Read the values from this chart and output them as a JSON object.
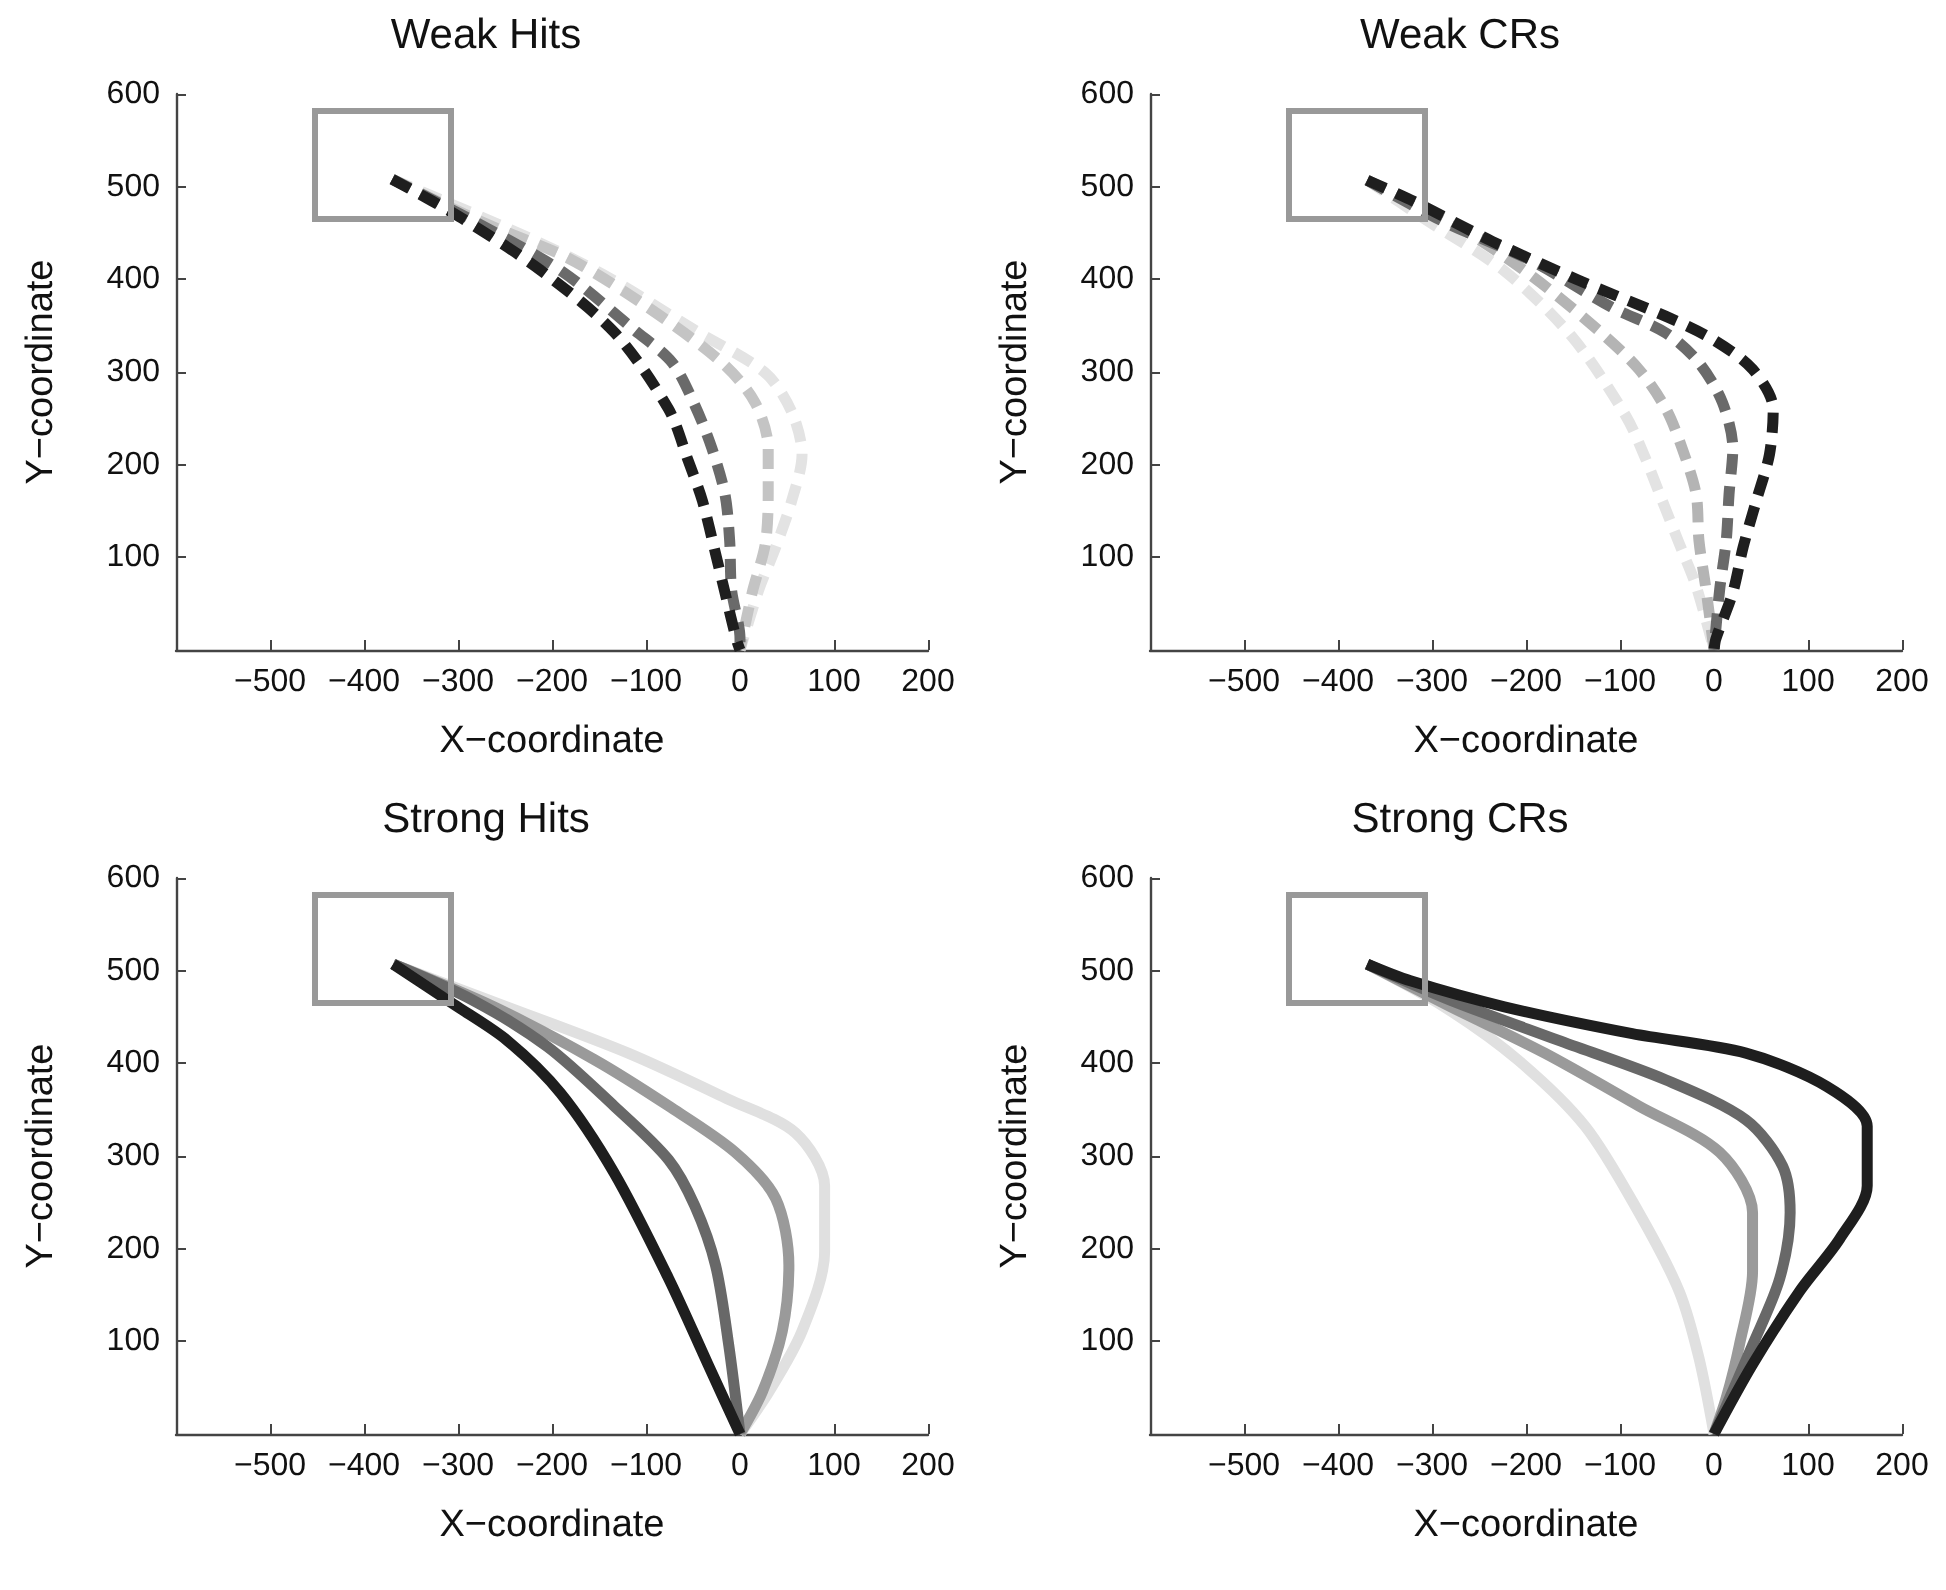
{
  "chart_data": [
    {
      "type": "line",
      "title": "Weak Hits",
      "xlabel": "X−coordinate",
      "ylabel": "Y−coordinate",
      "xlim": [
        -600,
        200
      ],
      "ylim": [
        0,
        600
      ],
      "xticks": [
        {
          "value": -500,
          "label": "−500"
        },
        {
          "value": -400,
          "label": "−400"
        },
        {
          "value": -300,
          "label": "−300"
        },
        {
          "value": -200,
          "label": "−200"
        },
        {
          "value": -100,
          "label": "−100"
        },
        0,
        100,
        200
      ],
      "yticks": [
        100,
        200,
        300,
        400,
        500,
        600
      ],
      "grid": false,
      "marker": "none",
      "line_style": "dashed",
      "series": [
        {
          "color": "#e3e3e3",
          "x": [
            -370,
            -225,
            -140,
            -48,
            27,
            55,
            66,
            55,
            38,
            20,
            0
          ],
          "values": [
            508,
            445,
            402,
            345,
            299,
            257,
            211,
            161,
            111,
            65,
            0
          ]
        },
        {
          "color": "#c4c4c4",
          "x": [
            -370,
            -275,
            -183,
            -104,
            -19,
            16,
            30,
            30,
            27,
            13,
            0
          ],
          "values": [
            508,
            462,
            423,
            374,
            310,
            267,
            218,
            168,
            115,
            62,
            0
          ]
        },
        {
          "color": "#6a6a6a",
          "x": [
            -370,
            -282,
            -190,
            -112,
            -72,
            -48,
            -30,
            -16,
            -11,
            -9,
            0,
            0
          ],
          "values": [
            508,
            462,
            409,
            345,
            310,
            264,
            218,
            168,
            118,
            65,
            12,
            0
          ]
        },
        {
          "color": "#1e1e1e",
          "x": [
            -370,
            -296,
            -211,
            -133,
            -76,
            -55,
            -40,
            -26,
            -16,
            -4,
            0
          ],
          "values": [
            508,
            466,
            409,
            342,
            260,
            204,
            161,
            104,
            62,
            12,
            0
          ]
        }
      ]
    },
    {
      "type": "line",
      "title": "Weak CRs",
      "xlabel": "X−coordinate",
      "ylabel": "Y−coordinate",
      "xlim": [
        -600,
        200
      ],
      "ylim": [
        0,
        600
      ],
      "xticks": [
        {
          "value": -500,
          "label": "−500"
        },
        {
          "value": -400,
          "label": "−400"
        },
        {
          "value": -300,
          "label": "−300"
        },
        {
          "value": -200,
          "label": "−200"
        },
        {
          "value": -100,
          "label": "−100"
        },
        0,
        100,
        200
      ],
      "yticks": [
        100,
        200,
        300,
        400,
        500,
        600
      ],
      "grid": false,
      "marker": "none",
      "line_style": "dashed",
      "series": [
        {
          "color": "#e3e3e3",
          "x": [
            -369,
            -309,
            -223,
            -151,
            -94,
            -73,
            -55,
            -37,
            -19,
            0
          ],
          "values": [
            507,
            466,
            409,
            338,
            253,
            207,
            161,
            115,
            69,
            0
          ]
        },
        {
          "color": "#b4b4b4",
          "x": [
            -369,
            -287,
            -201,
            -123,
            -80,
            -51,
            -34,
            -19,
            -16,
            -9,
            0
          ],
          "values": [
            507,
            466,
            409,
            345,
            303,
            260,
            218,
            168,
            118,
            69,
            0
          ]
        },
        {
          "color": "#6a6a6a",
          "x": [
            -369,
            -287,
            -194,
            -109,
            -51,
            -16,
            9,
            20,
            16,
            13,
            6,
            0
          ],
          "values": [
            507,
            462,
            420,
            370,
            342,
            310,
            267,
            218,
            168,
            118,
            65,
            0
          ]
        },
        {
          "color": "#1e1e1e",
          "x": [
            -369,
            -319,
            -236,
            -144,
            -51,
            -1,
            41,
            63,
            59,
            45,
            31,
            20,
            2,
            0
          ],
          "values": [
            507,
            484,
            441,
            399,
            360,
            335,
            303,
            260,
            211,
            161,
            111,
            62,
            12,
            0
          ]
        }
      ]
    },
    {
      "type": "line",
      "title": "Strong Hits",
      "xlabel": "X−coordinate",
      "ylabel": "Y−coordinate",
      "xlim": [
        -600,
        200
      ],
      "ylim": [
        0,
        600
      ],
      "xticks": [
        {
          "value": -500,
          "label": "−500"
        },
        {
          "value": -400,
          "label": "−400"
        },
        {
          "value": -300,
          "label": "−300"
        },
        {
          "value": -200,
          "label": "−200"
        },
        {
          "value": -100,
          "label": "−100"
        },
        0,
        100,
        200
      ],
      "yticks": [
        100,
        200,
        300,
        400,
        500,
        600
      ],
      "grid": false,
      "marker": "none",
      "line_style": "solid",
      "series": [
        {
          "color": "#e0e0e0",
          "x": [
            -369,
            -248,
            -119,
            -12,
            59,
            90,
            90,
            66,
            31,
            0
          ],
          "values": [
            507,
            461,
            411,
            361,
            325,
            268,
            196,
            111,
            46,
            0
          ]
        },
        {
          "color": "#9a9a9a",
          "x": [
            -369,
            -262,
            -155,
            -76,
            -5,
            38,
            52,
            45,
            24,
            0
          ],
          "values": [
            507,
            461,
            404,
            354,
            304,
            254,
            182,
            111,
            46,
            0
          ]
        },
        {
          "color": "#686868",
          "x": [
            -369,
            -284,
            -205,
            -134,
            -76,
            -48,
            -26,
            -12,
            0
          ],
          "values": [
            507,
            468,
            418,
            354,
            296,
            246,
            182,
            96,
            0
          ]
        },
        {
          "color": "#1e1e1e",
          "x": [
            -369,
            -305,
            -248,
            -191,
            -134,
            -76,
            -34,
            0
          ],
          "values": [
            507,
            464,
            425,
            368,
            282,
            168,
            75,
            0
          ]
        }
      ]
    },
    {
      "type": "line",
      "title": "Strong CRs",
      "xlabel": "X−coordinate",
      "ylabel": "Y−coordinate",
      "xlim": [
        -600,
        200
      ],
      "ylim": [
        0,
        600
      ],
      "xticks": [
        {
          "value": -500,
          "label": "−500"
        },
        {
          "value": -400,
          "label": "−400"
        },
        {
          "value": -300,
          "label": "−300"
        },
        {
          "value": -200,
          "label": "−200"
        },
        {
          "value": -100,
          "label": "−100"
        },
        0,
        100,
        200
      ],
      "yticks": [
        100,
        200,
        300,
        400,
        500,
        600
      ],
      "grid": false,
      "marker": "none",
      "line_style": "solid",
      "series": [
        {
          "color": "#e0e0e0",
          "x": [
            -369,
            -287,
            -209,
            -137,
            -80,
            -37,
            -16,
            0
          ],
          "values": [
            507,
            461,
            404,
            332,
            239,
            154,
            82,
            0
          ]
        },
        {
          "color": "#9a9a9a",
          "x": [
            -369,
            -280,
            -180,
            -80,
            6,
            41,
            41,
            27,
            13,
            0
          ],
          "values": [
            507,
            461,
            411,
            354,
            304,
            239,
            175,
            96,
            39,
            0
          ]
        },
        {
          "color": "#686868",
          "x": [
            -369,
            -280,
            -166,
            -51,
            34,
            73,
            81,
            70,
            41,
            0
          ],
          "values": [
            507,
            468,
            425,
            382,
            339,
            289,
            239,
            168,
            96,
            0
          ]
        },
        {
          "color": "#1e1e1e",
          "x": [
            -369,
            -323,
            -223,
            -87,
            34,
            120,
            163,
            163,
            134,
            91,
            41,
            0
          ],
          "values": [
            507,
            489,
            461,
            432,
            411,
            375,
            332,
            268,
            211,
            154,
            75,
            0
          ]
        }
      ]
    }
  ]
}
